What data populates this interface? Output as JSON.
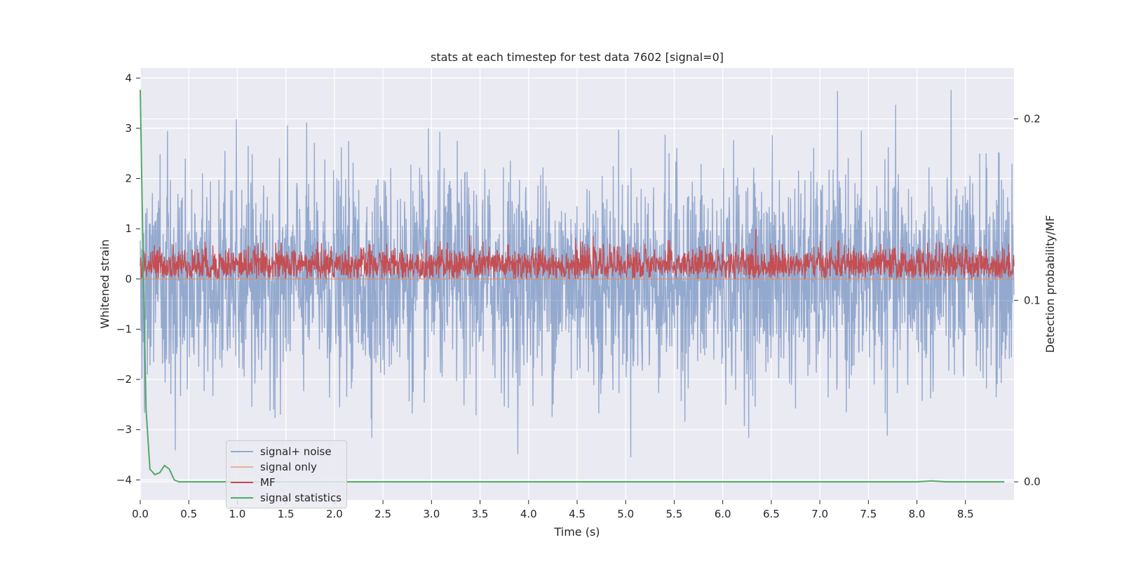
{
  "chart_data": {
    "type": "line",
    "title": "stats at each timestep for test data 7602 [signal=0]",
    "xlabel": "Time (s)",
    "ylabel": "Whitened strain",
    "ylabel_right": "Detection probability/MF",
    "xlim": [
      0.0,
      9.0
    ],
    "ylim": [
      -4.4,
      4.2
    ],
    "ylim_right": [
      -0.01,
      0.228
    ],
    "x_ticks": [
      "0.0",
      "0.5",
      "1.0",
      "1.5",
      "2.0",
      "2.5",
      "3.0",
      "3.5",
      "4.0",
      "4.5",
      "5.0",
      "5.5",
      "6.0",
      "6.5",
      "7.0",
      "7.5",
      "8.0",
      "8.5"
    ],
    "y_ticks": [
      "4",
      "3",
      "2",
      "1",
      "0",
      "−1",
      "−2",
      "−3",
      "−4"
    ],
    "y_ticks_right": [
      "0.2",
      "0.1",
      "0.0"
    ],
    "grid": true,
    "legend_position": "lower-left",
    "series": [
      {
        "name": "signal+ noise",
        "color": "#4c72b0",
        "axis": "left",
        "description": "whitened noise, roughly zero-mean, spans approx -3.7 to 3.8 across 0-9 s"
      },
      {
        "name": "signal only",
        "color": "#dd8452",
        "axis": "left",
        "values_note": "flat at 0"
      },
      {
        "name": "MF",
        "color": "#c44e52",
        "axis": "left",
        "description": "matched-filter output fluctuating approx 0.0 to 1.0, mean ~0.3"
      },
      {
        "name": "signal statistics",
        "color": "#55a868",
        "axis": "right",
        "x": [
          0.0,
          0.03,
          0.06,
          0.1,
          0.15,
          0.2,
          0.25,
          0.3,
          0.35,
          0.4,
          0.45,
          0.5,
          1.0,
          2.0,
          3.0,
          4.0,
          5.0,
          6.0,
          7.0,
          8.0,
          8.15,
          8.3,
          8.9
        ],
        "values": [
          0.216,
          0.12,
          0.04,
          0.007,
          0.004,
          0.005,
          0.009,
          0.007,
          0.001,
          0.0,
          0.0,
          0.0,
          0.0,
          0.0,
          0.0,
          0.0,
          0.0,
          0.0,
          0.0,
          0.0,
          0.0005,
          0.0,
          0.0
        ]
      }
    ]
  }
}
